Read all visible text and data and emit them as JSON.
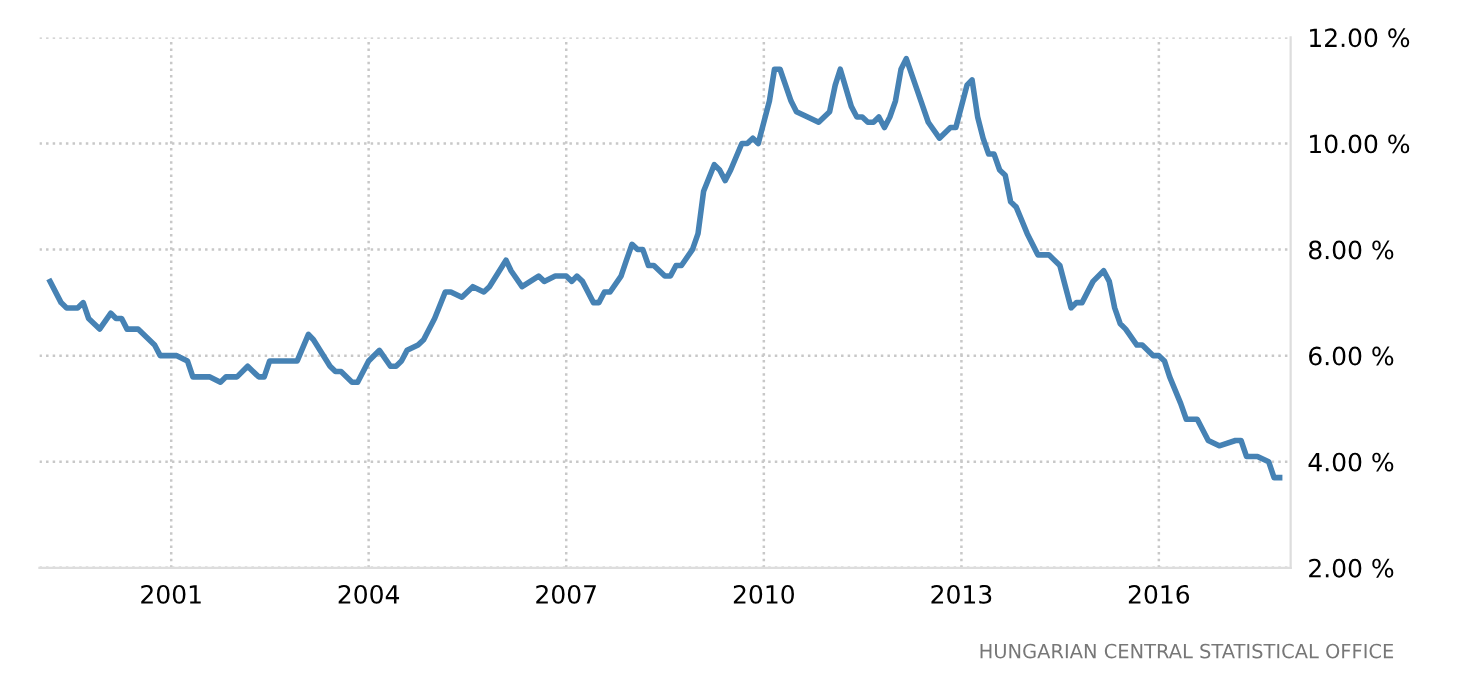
{
  "chart_data": {
    "type": "line",
    "annotations": [
      "HUNGARIAN CENTRAL STATISTICAL OFFICE"
    ],
    "x": [
      "1999-03",
      "1999-05",
      "1999-06",
      "1999-08",
      "1999-09",
      "1999-10",
      "1999-12",
      "2000-02",
      "2000-03",
      "2000-04",
      "2000-05",
      "2000-07",
      "2000-10",
      "2000-11",
      "2000-12",
      "2001-02",
      "2001-04",
      "2001-05",
      "2001-07",
      "2001-08",
      "2001-10",
      "2001-11",
      "2002-01",
      "2002-03",
      "2002-05",
      "2002-06",
      "2002-07",
      "2002-09",
      "2002-12",
      "2003-02",
      "2003-03",
      "2003-06",
      "2003-07",
      "2003-08",
      "2003-10",
      "2003-11",
      "2004-01",
      "2004-03",
      "2004-05",
      "2004-06",
      "2004-07",
      "2004-08",
      "2004-10",
      "2004-11",
      "2005-01",
      "2005-03",
      "2005-04",
      "2005-06",
      "2005-08",
      "2005-10",
      "2005-11",
      "2006-02",
      "2006-03",
      "2006-05",
      "2006-08",
      "2006-09",
      "2006-11",
      "2007-01",
      "2007-02",
      "2007-03",
      "2007-04",
      "2007-06",
      "2007-07",
      "2007-08",
      "2007-09",
      "2007-11",
      "2007-12",
      "2008-01",
      "2008-02",
      "2008-03",
      "2008-04",
      "2008-05",
      "2008-07",
      "2008-08",
      "2008-09",
      "2008-10",
      "2008-12",
      "2009-01",
      "2009-02",
      "2009-04",
      "2009-05",
      "2009-06",
      "2009-07",
      "2009-09",
      "2009-10",
      "2009-11",
      "2009-12",
      "2010-02",
      "2010-03",
      "2010-04",
      "2010-06",
      "2010-07",
      "2010-09",
      "2010-11",
      "2011-01",
      "2011-02",
      "2011-03",
      "2011-05",
      "2011-06",
      "2011-07",
      "2011-08",
      "2011-09",
      "2011-10",
      "2011-11",
      "2011-12",
      "2012-01",
      "2012-02",
      "2012-03",
      "2012-05",
      "2012-07",
      "2012-09",
      "2012-11",
      "2012-12",
      "2013-02",
      "2013-03",
      "2013-04",
      "2013-05",
      "2013-06",
      "2013-07",
      "2013-08",
      "2013-09",
      "2013-10",
      "2013-11",
      "2014-01",
      "2014-03",
      "2014-04",
      "2014-05",
      "2014-07",
      "2014-08",
      "2014-09",
      "2014-10",
      "2014-11",
      "2015-01",
      "2015-03",
      "2015-04",
      "2015-05",
      "2015-06",
      "2015-07",
      "2015-09",
      "2015-10",
      "2015-12",
      "2016-01",
      "2016-02",
      "2016-03",
      "2016-05",
      "2016-06",
      "2016-08",
      "2016-10",
      "2016-12",
      "2017-03",
      "2017-04",
      "2017-05",
      "2017-07",
      "2017-09",
      "2017-10",
      "2017-11"
    ],
    "series": [
      {
        "color": "#4682b4",
        "values": [
          7.4,
          7.0,
          6.9,
          6.9,
          7.0,
          6.7,
          6.5,
          6.8,
          6.7,
          6.7,
          6.5,
          6.5,
          6.2,
          6.0,
          6.0,
          6.0,
          5.9,
          5.6,
          5.6,
          5.6,
          5.5,
          5.6,
          5.6,
          5.8,
          5.6,
          5.6,
          5.9,
          5.9,
          5.9,
          6.4,
          6.3,
          5.8,
          5.7,
          5.7,
          5.5,
          5.5,
          5.9,
          6.1,
          5.8,
          5.8,
          5.9,
          6.1,
          6.2,
          6.3,
          6.7,
          7.2,
          7.2,
          7.1,
          7.3,
          7.2,
          7.3,
          7.8,
          7.6,
          7.3,
          7.5,
          7.4,
          7.5,
          7.5,
          7.4,
          7.5,
          7.4,
          7.0,
          7.0,
          7.2,
          7.2,
          7.5,
          7.8,
          8.1,
          8.0,
          8.0,
          7.7,
          7.7,
          7.5,
          7.5,
          7.7,
          7.7,
          8.0,
          8.3,
          9.1,
          9.6,
          9.5,
          9.3,
          9.5,
          10.0,
          10.0,
          10.1,
          10.0,
          10.8,
          11.4,
          11.4,
          10.8,
          10.6,
          10.5,
          10.4,
          10.6,
          11.1,
          11.4,
          10.7,
          10.5,
          10.5,
          10.4,
          10.4,
          10.5,
          10.3,
          10.5,
          10.8,
          11.4,
          11.6,
          11.0,
          10.4,
          10.1,
          10.3,
          10.3,
          11.1,
          11.2,
          10.5,
          10.1,
          9.8,
          9.8,
          9.5,
          9.4,
          8.9,
          8.8,
          8.3,
          7.9,
          7.9,
          7.9,
          7.7,
          7.3,
          6.9,
          7.0,
          7.0,
          7.4,
          7.6,
          7.4,
          6.9,
          6.6,
          6.5,
          6.2,
          6.2,
          6.0,
          6.0,
          5.9,
          5.6,
          5.1,
          4.8,
          4.8,
          4.4,
          4.3,
          4.4,
          4.4,
          4.1,
          4.1,
          4.0,
          3.7,
          3.7
        ]
      }
    ],
    "xlim": [
      "1999-01",
      "2018-01"
    ],
    "xticks": [
      {
        "value": "2001-01",
        "label": "2001"
      },
      {
        "value": "2004-01",
        "label": "2004"
      },
      {
        "value": "2007-01",
        "label": "2007"
      },
      {
        "value": "2010-01",
        "label": "2010"
      },
      {
        "value": "2013-01",
        "label": "2013"
      },
      {
        "value": "2016-01",
        "label": "2016"
      }
    ],
    "ylim": [
      2,
      12
    ],
    "yticks": [
      {
        "value": 2,
        "label": "2.00 %"
      },
      {
        "value": 4,
        "label": "4.00 %"
      },
      {
        "value": 6,
        "label": "6.00 %"
      },
      {
        "value": 8,
        "label": "8.00 %"
      },
      {
        "value": 10,
        "label": "10.00 %"
      },
      {
        "value": 12,
        "label": "12.00 %"
      }
    ],
    "grid": true,
    "line_style": "solid",
    "legend": false
  }
}
